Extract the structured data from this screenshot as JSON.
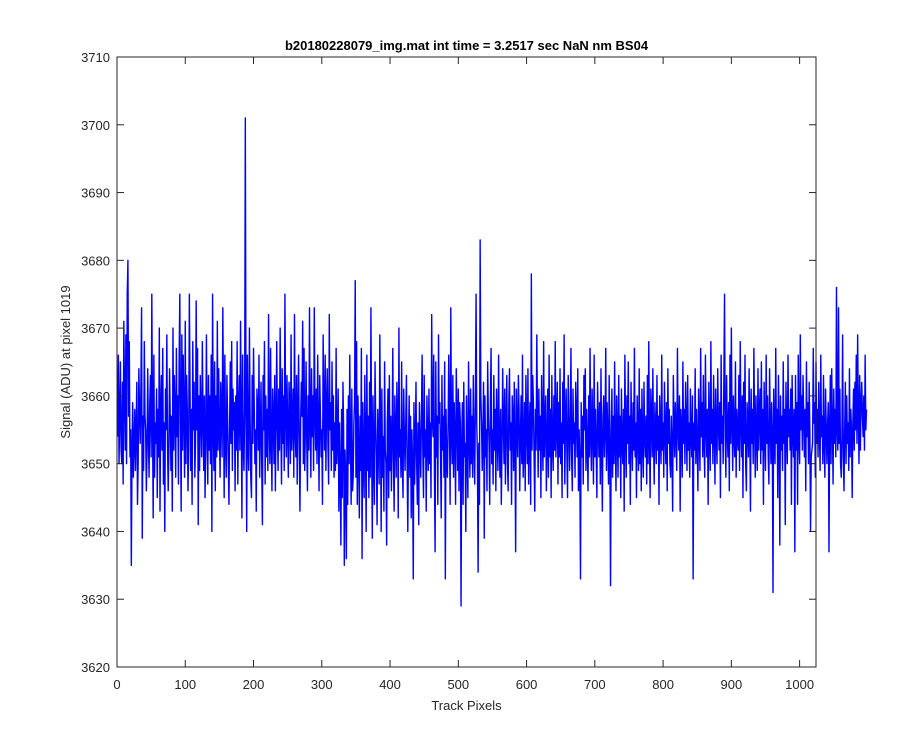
{
  "chart_data": {
    "type": "line",
    "title": "b20180228079_img.mat int time = 3.2517 sec  NaN nm BS04",
    "xlabel": "Track Pixels",
    "ylabel": "Signal (ADU) at pixel 1019",
    "xlim": [
      0,
      1024
    ],
    "ylim": [
      3620,
      3710
    ],
    "xticks": [
      0,
      100,
      200,
      300,
      400,
      500,
      600,
      700,
      800,
      900,
      1000
    ],
    "yticks": [
      3620,
      3630,
      3640,
      3650,
      3660,
      3670,
      3680,
      3690,
      3700,
      3710
    ],
    "grid": false,
    "legend": "none",
    "series": [
      {
        "color": "#0000ff",
        "x_start": 1,
        "x_step": 1,
        "note_points": "one value per track pixel (approximate readings of a noisy trace)",
        "values": [
          3654,
          3666,
          3650,
          3657,
          3665,
          3652,
          3650,
          3662,
          3647,
          3671,
          3660,
          3652,
          3669,
          3650,
          3675,
          3680,
          3657,
          3668,
          3651,
          3655,
          3635,
          3652,
          3659,
          3648,
          3653,
          3658,
          3649,
          3655,
          3662,
          3644,
          3650,
          3664,
          3658,
          3653,
          3661,
          3673,
          3639,
          3657,
          3649,
          3668,
          3657,
          3655,
          3646,
          3652,
          3664,
          3654,
          3648,
          3659,
          3663,
          3651,
          3675,
          3657,
          3642,
          3666,
          3648,
          3656,
          3653,
          3661,
          3645,
          3658,
          3651,
          3670,
          3643,
          3658,
          3663,
          3652,
          3667,
          3647,
          3656,
          3640,
          3661,
          3655,
          3669,
          3653,
          3646,
          3652,
          3664,
          3657,
          3649,
          3657,
          3643,
          3670,
          3652,
          3663,
          3658,
          3648,
          3667,
          3654,
          3660,
          3647,
          3665,
          3675,
          3656,
          3643,
          3669,
          3652,
          3666,
          3657,
          3648,
          3671,
          3650,
          3663,
          3658,
          3646,
          3652,
          3675,
          3661,
          3649,
          3658,
          3644,
          3668,
          3655,
          3662,
          3648,
          3653,
          3674,
          3655,
          3667,
          3641,
          3660,
          3649,
          3663,
          3657,
          3651,
          3668,
          3657,
          3649,
          3660,
          3645,
          3653,
          3669,
          3654,
          3647,
          3663,
          3652,
          3660,
          3650,
          3666,
          3640,
          3675,
          3656,
          3649,
          3665,
          3646,
          3660,
          3651,
          3671,
          3652,
          3664,
          3655,
          3648,
          3662,
          3657,
          3651,
          3673,
          3659,
          3645,
          3666,
          3653,
          3648,
          3663,
          3657,
          3650,
          3644,
          3656,
          3665,
          3653,
          3668,
          3649,
          3661,
          3655,
          3659,
          3646,
          3660,
          3652,
          3668,
          3647,
          3658,
          3663,
          3652,
          3671,
          3657,
          3642,
          3666,
          3653,
          3649,
          3658,
          3701,
          3657,
          3640,
          3666,
          3653,
          3649,
          3670,
          3657,
          3648,
          3645,
          3663,
          3653,
          3667,
          3659,
          3650,
          3655,
          3643,
          3661,
          3658,
          3652,
          3666,
          3648,
          3655,
          3662,
          3650,
          3641,
          3663,
          3655,
          3668,
          3647,
          3660,
          3651,
          3658,
          3649,
          3672,
          3656,
          3650,
          3667,
          3653,
          3646,
          3661,
          3657,
          3650,
          3663,
          3646,
          3656,
          3668,
          3655,
          3649,
          3661,
          3652,
          3670,
          3657,
          3647,
          3664,
          3653,
          3660,
          3649,
          3675,
          3657,
          3651,
          3663,
          3655,
          3648,
          3662,
          3658,
          3650,
          3669,
          3652,
          3656,
          3661,
          3648,
          3672,
          3655,
          3651,
          3663,
          3647,
          3658,
          3666,
          3653,
          3643,
          3656,
          3662,
          3657,
          3671,
          3650,
          3667,
          3649,
          3655,
          3665,
          3653,
          3646,
          3660,
          3652,
          3673,
          3656,
          3648,
          3664,
          3654,
          3660,
          3649,
          3673,
          3657,
          3652,
          3661,
          3650,
          3666,
          3655,
          3646,
          3663,
          3657,
          3651,
          3655,
          3644,
          3669,
          3658,
          3652,
          3666,
          3649,
          3658,
          3664,
          3653,
          3647,
          3672,
          3655,
          3659,
          3649,
          3665,
          3652,
          3660,
          3648,
          3656,
          3649,
          3667,
          3650,
          3654,
          3661,
          3643,
          3656,
          3648,
          3638,
          3658,
          3645,
          3662,
          3655,
          3635,
          3652,
          3648,
          3636,
          3658,
          3644,
          3660,
          3650,
          3666,
          3653,
          3644,
          3661,
          3646,
          3648,
          3656,
          3659,
          3677,
          3648,
          3668,
          3644,
          3660,
          3652,
          3642,
          3657,
          3649,
          3667,
          3636,
          3659,
          3651,
          3645,
          3663,
          3653,
          3640,
          3666,
          3649,
          3657,
          3645,
          3662,
          3648,
          3673,
          3653,
          3639,
          3660,
          3651,
          3644,
          3665,
          3656,
          3651,
          3641,
          3658,
          3653,
          3647,
          3669,
          3656,
          3640,
          3661,
          3648,
          3654,
          3643,
          3665,
          3652,
          3650,
          3638,
          3656,
          3661,
          3645,
          3663,
          3649,
          3657,
          3646,
          3653,
          3667,
          3651,
          3643,
          3660,
          3655,
          3648,
          3662,
          3657,
          3642,
          3670,
          3651,
          3655,
          3648,
          3665,
          3650,
          3645,
          3661,
          3654,
          3649,
          3656,
          3663,
          3650,
          3640,
          3653,
          3660,
          3648,
          3657,
          3642,
          3655,
          3650,
          3633,
          3659,
          3647,
          3653,
          3662,
          3650,
          3644,
          3656,
          3641,
          3659,
          3653,
          3648,
          3657,
          3666,
          3652,
          3645,
          3663,
          3651,
          3655,
          3643,
          3660,
          3653,
          3649,
          3661,
          3650,
          3656,
          3645,
          3672,
          3657,
          3654,
          3666,
          3649,
          3637,
          3665,
          3651,
          3657,
          3644,
          3669,
          3656,
          3659,
          3651,
          3642,
          3663,
          3652,
          3657,
          3648,
          3665,
          3633,
          3658,
          3651,
          3648,
          3655,
          3666,
          3657,
          3644,
          3673,
          3654,
          3650,
          3663,
          3648,
          3659,
          3654,
          3644,
          3664,
          3657,
          3649,
          3661,
          3646,
          3659,
          3656,
          3629,
          3653,
          3659,
          3644,
          3662,
          3651,
          3653,
          3640,
          3660,
          3652,
          3645,
          3665,
          3654,
          3648,
          3661,
          3650,
          3657,
          3648,
          3663,
          3653,
          3647,
          3659,
          3675,
          3656,
          3651,
          3634,
          3653,
          3644,
          3683,
          3660,
          3656,
          3649,
          3654,
          3662,
          3639,
          3660,
          3651,
          3655,
          3646,
          3665,
          3657,
          3653,
          3644,
          3659,
          3667,
          3650,
          3655,
          3647,
          3663,
          3652,
          3658,
          3646,
          3661,
          3655,
          3649,
          3666,
          3653,
          3648,
          3658,
          3644,
          3652,
          3664,
          3656,
          3650,
          3661,
          3647,
          3656,
          3663,
          3650,
          3646,
          3659,
          3664,
          3652,
          3656,
          3644,
          3660,
          3657,
          3649,
          3662,
          3653,
          3637,
          3661,
          3656,
          3651,
          3663,
          3658,
          3646,
          3654,
          3660,
          3650,
          3666,
          3648,
          3652,
          3659,
          3646,
          3663,
          3656,
          3650,
          3664,
          3647,
          3655,
          3659,
          3644,
          3678,
          3652,
          3663,
          3659,
          3651,
          3643,
          3658,
          3652,
          3669,
          3656,
          3648,
          3661,
          3652,
          3657,
          3645,
          3663,
          3655,
          3649,
          3668,
          3651,
          3656,
          3660,
          3646,
          3653,
          3661,
          3648,
          3666,
          3651,
          3658,
          3645,
          3663,
          3653,
          3649,
          3660,
          3652,
          3668,
          3651,
          3656,
          3662,
          3647,
          3659,
          3651,
          3664,
          3650,
          3656,
          3645,
          3662,
          3653,
          3669,
          3647,
          3656,
          3661,
          3652,
          3645,
          3663,
          3657,
          3649,
          3655,
          3667,
          3651,
          3646,
          3661,
          3653,
          3656,
          3648,
          3662,
          3657,
          3651,
          3664,
          3646,
          3655,
          3650,
          3633,
          3659,
          3651,
          3657,
          3647,
          3663,
          3655,
          3664,
          3649,
          3658,
          3653,
          3646,
          3660,
          3651,
          3667,
          3654,
          3649,
          3661,
          3655,
          3647,
          3666,
          3651,
          3658,
          3652,
          3645,
          3662,
          3656,
          3651,
          3659,
          3647,
          3664,
          3652,
          3643,
          3657,
          3660,
          3651,
          3655,
          3667,
          3649,
          3659,
          3654,
          3647,
          3663,
          3652,
          3632,
          3655,
          3661,
          3648,
          3657,
          3650,
          3665,
          3653,
          3646,
          3660,
          3654,
          3648,
          3663,
          3651,
          3657,
          3645,
          3661,
          3653,
          3650,
          3658,
          3643,
          3666,
          3655,
          3648,
          3660,
          3653,
          3665,
          3650,
          3657,
          3644,
          3662,
          3654,
          3649,
          3659,
          3652,
          3667,
          3651,
          3656,
          3645,
          3660,
          3655,
          3649,
          3664,
          3650,
          3658,
          3646,
          3661,
          3653,
          3648,
          3662,
          3654,
          3651,
          3657,
          3647,
          3663,
          3650,
          3668,
          3654,
          3645,
          3661,
          3657,
          3651,
          3664,
          3653,
          3647,
          3659,
          3655,
          3650,
          3663,
          3652,
          3657,
          3644,
          3660,
          3654,
          3650,
          3666,
          3652,
          3656,
          3648,
          3662,
          3655,
          3650,
          3659,
          3646,
          3664,
          3653,
          3658,
          3650,
          3648,
          3657,
          3652,
          3643,
          3663,
          3656,
          3651,
          3659,
          3654,
          3649,
          3667,
          3655,
          3652,
          3660,
          3643,
          3658,
          3655,
          3648,
          3665,
          3653,
          3658,
          3650,
          3662,
          3656,
          3649,
          3663,
          3652,
          3656,
          3648,
          3661,
          3654,
          3651,
          3660,
          3633,
          3656,
          3652,
          3664,
          3650,
          3658,
          3653,
          3646,
          3661,
          3655,
          3649,
          3667,
          3654,
          3659,
          3651,
          3663,
          3653,
          3648,
          3666,
          3656,
          3651,
          3658,
          3644,
          3662,
          3655,
          3649,
          3668,
          3653,
          3658,
          3650,
          3663,
          3655,
          3647,
          3661,
          3654,
          3650,
          3664,
          3656,
          3652,
          3659,
          3645,
          3666,
          3653,
          3657,
          3650,
          3662,
          3675,
          3654,
          3648,
          3663,
          3655,
          3651,
          3659,
          3646,
          3666,
          3653,
          3670,
          3656,
          3649,
          3660,
          3654,
          3651,
          3665,
          3648,
          3658,
          3654,
          3652,
          3663,
          3649,
          3668,
          3656,
          3651,
          3660,
          3645,
          3662,
          3653,
          3666,
          3650,
          3646,
          3659,
          3656,
          3651,
          3664,
          3655,
          3643,
          3661,
          3653,
          3658,
          3650,
          3667,
          3656,
          3648,
          3660,
          3654,
          3649,
          3664,
          3652,
          3657,
          3661,
          3650,
          3665,
          3652,
          3658,
          3644,
          3662,
          3655,
          3649,
          3666,
          3653,
          3660,
          3651,
          3647,
          3664,
          3656,
          3650,
          3659,
          3654,
          3631,
          3661,
          3655,
          3650,
          3667,
          3653,
          3658,
          3645,
          3663,
          3655,
          3638,
          3660,
          3652,
          3657,
          3649,
          3665,
          3653,
          3658,
          3641,
          3662,
          3655,
          3650,
          3666,
          3654,
          3658,
          3652,
          3661,
          3644,
          3663,
          3655,
          3651,
          3658,
          3637,
          3663,
          3652,
          3659,
          3644,
          3666,
          3654,
          3650,
          3669,
          3655,
          3660,
          3652,
          3663,
          3657,
          3651,
          3658,
          3646,
          3665,
          3654,
          3659,
          3650,
          3662,
          3655,
          3640,
          3651,
          3652,
          3653,
          3667,
          3656,
          3659,
          3648,
          3665,
          3653,
          3658,
          3651,
          3662,
          3655,
          3649,
          3666,
          3654,
          3657,
          3650,
          3663,
          3653,
          3648,
          3661,
          3655,
          3650,
          3656,
          3659,
          3637,
          3655,
          3663,
          3650,
          3664,
          3656,
          3647,
          3661,
          3653,
          3658,
          3651,
          3676,
          3655,
          3652,
          3673,
          3653,
          3661,
          3650,
          3648,
          3654,
          3669,
          3651,
          3646,
          3655,
          3662,
          3650,
          3660,
          3653,
          3656,
          3649,
          3664,
          3651,
          3658,
          3655,
          3645,
          3656,
          3661,
          3652,
          3662,
          3655,
          3666,
          3653,
          3669,
          3657,
          3650,
          3663,
          3652,
          3659,
          3662,
          3657,
          3654,
          3660,
          3652,
          3666,
          3655,
          3658
        ]
      }
    ]
  }
}
